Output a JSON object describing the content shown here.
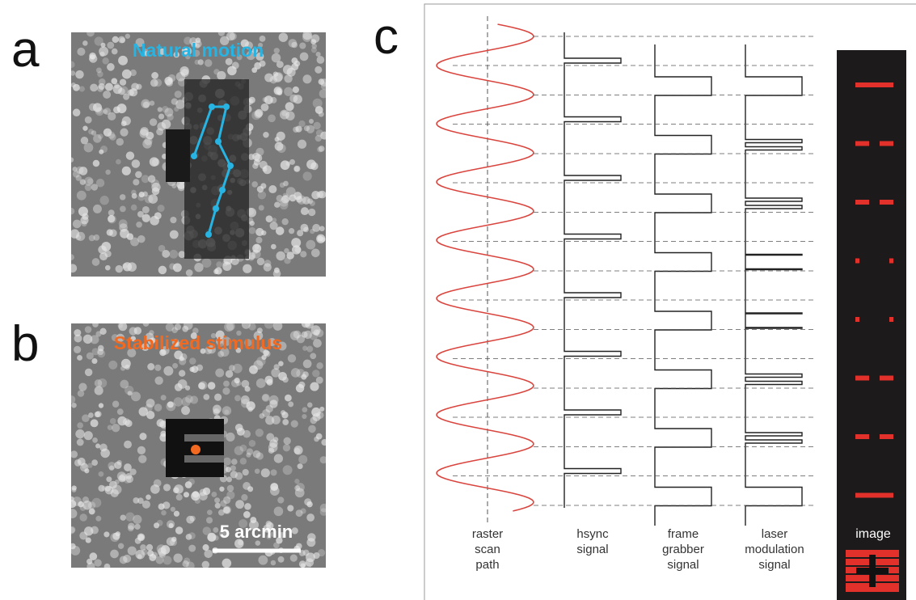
{
  "panels": {
    "a": {
      "label": "a",
      "title": "Natural motion"
    },
    "b": {
      "label": "b",
      "title": "Stabilized stimulus",
      "scale_bar": "5 arcmin"
    },
    "c": {
      "label": "c",
      "columns": [
        [
          "raster",
          "scan",
          "path"
        ],
        [
          "hsync",
          "signal"
        ],
        [
          "frame",
          "grabber",
          "signal"
        ],
        [
          "laser",
          "modulation",
          "signal"
        ]
      ],
      "image_label": "image"
    }
  }
}
